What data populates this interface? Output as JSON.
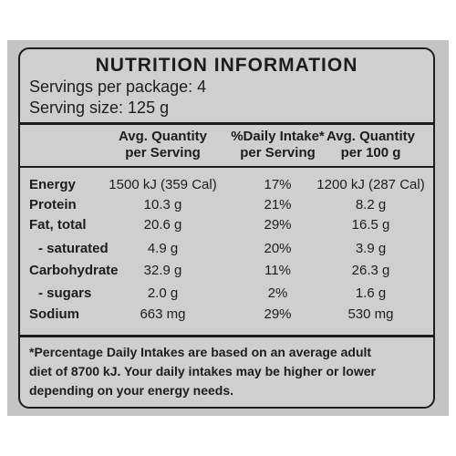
{
  "title": "NUTRITION INFORMATION",
  "servings_per_package": "Servings per package: 4",
  "serving_size": "Serving size: 125 g",
  "columns": [
    {
      "line1": "Avg. Quantity",
      "line2": "per Serving"
    },
    {
      "line1": "%Daily Intake*",
      "line2": "per Serving"
    },
    {
      "line1": "Avg. Quantity",
      "line2": "per 100 g"
    }
  ],
  "rows": [
    {
      "name": "Energy",
      "per_serving": "1500 kJ (359 Cal)",
      "daily_intake": "17%",
      "per_100g": "1200 kJ (287 Cal)"
    },
    {
      "name": "Protein",
      "per_serving": "10.3 g",
      "daily_intake": "21%",
      "per_100g": "8.2 g"
    },
    {
      "name": "Fat, total",
      "per_serving": "20.6 g",
      "daily_intake": "29%",
      "per_100g": "16.5 g"
    },
    {
      "name": "- saturated",
      "per_serving": "4.9 g",
      "daily_intake": "20%",
      "per_100g": "3.9 g"
    },
    {
      "name": "Carbohydrate",
      "per_serving": "32.9 g",
      "daily_intake": "11%",
      "per_100g": "26.3 g"
    },
    {
      "name": "- sugars",
      "per_serving": "2.0 g",
      "daily_intake": "2%",
      "per_100g": "1.6 g"
    },
    {
      "name": "Sodium",
      "per_serving": "663 mg",
      "daily_intake": "29%",
      "per_100g": "530 mg"
    }
  ],
  "footnote": {
    "line1": "*Percentage Daily Intakes are based on an average adult",
    "line2": "diet of 8700 kJ. Your daily intakes may be higher or lower",
    "line3": "depending on your energy needs."
  }
}
